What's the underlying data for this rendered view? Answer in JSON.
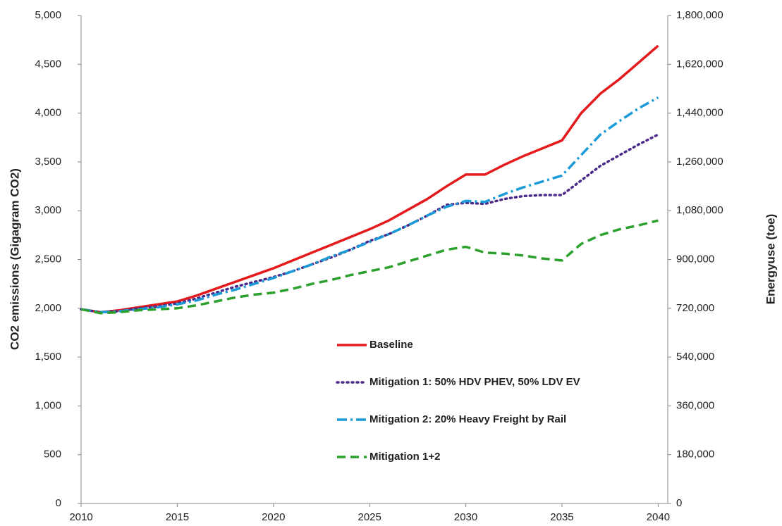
{
  "chart_data": {
    "type": "line",
    "ylabel": "CO2 emissions (Gigagram CO2)",
    "y2label": "Energyuse (toe)",
    "x": [
      2010,
      2011,
      2012,
      2013,
      2014,
      2015,
      2016,
      2017,
      2018,
      2019,
      2020,
      2021,
      2022,
      2023,
      2024,
      2025,
      2026,
      2027,
      2028,
      2029,
      2030,
      2031,
      2032,
      2033,
      2034,
      2035,
      2036,
      2037,
      2038,
      2039,
      2040
    ],
    "xlim": [
      2010,
      2040.5
    ],
    "xticks": [
      2010,
      2015,
      2020,
      2025,
      2030,
      2035,
      2040
    ],
    "ylim": [
      0,
      5000
    ],
    "yticks": [
      0,
      500,
      {
        "value": 1000,
        "label": "1,000"
      },
      {
        "value": 1500,
        "label": "1,500"
      },
      {
        "value": 2000,
        "label": "2,000"
      },
      {
        "value": 2500,
        "label": "2,500"
      },
      {
        "value": 3000,
        "label": "3,000"
      },
      {
        "value": 3500,
        "label": "3,500"
      },
      {
        "value": 4000,
        "label": "4,000"
      },
      {
        "value": 4500,
        "label": "4,500"
      },
      {
        "value": 5000,
        "label": "5,000"
      }
    ],
    "y2lim": [
      0,
      1800000
    ],
    "y2ticks": [
      0,
      {
        "value": 180000,
        "label": "180,000"
      },
      {
        "value": 360000,
        "label": "360,000"
      },
      {
        "value": 540000,
        "label": "540,000"
      },
      {
        "value": 720000,
        "label": "720,000"
      },
      {
        "value": 900000,
        "label": "900,000"
      },
      {
        "value": 1080000,
        "label": "1,080,000"
      },
      {
        "value": 1260000,
        "label": "1,260,000"
      },
      {
        "value": 1440000,
        "label": "1,440,000"
      },
      {
        "value": 1620000,
        "label": "1,620,000"
      },
      {
        "value": 1800000,
        "label": "1,800,000"
      }
    ],
    "legend": "center",
    "series": [
      {
        "name": "Baseline",
        "color": "#e41a1c",
        "style": "solid",
        "values": [
          1990,
          1960,
          1980,
          2010,
          2040,
          2070,
          2130,
          2200,
          2270,
          2340,
          2410,
          2490,
          2570,
          2650,
          2730,
          2810,
          2900,
          3010,
          3120,
          3250,
          3370,
          3370,
          3470,
          3560,
          3640,
          3720,
          4000,
          4200,
          4350,
          4520,
          4690
        ]
      },
      {
        "name": "Mitigation 1: 50% HDV PHEV, 50% LDV EV",
        "color": "#4b2a8a",
        "style": "dotted",
        "values": [
          1990,
          1960,
          1970,
          2000,
          2020,
          2050,
          2100,
          2160,
          2220,
          2270,
          2320,
          2380,
          2450,
          2520,
          2600,
          2690,
          2760,
          2850,
          2950,
          3060,
          3080,
          3070,
          3120,
          3150,
          3160,
          3160,
          3310,
          3460,
          3570,
          3680,
          3780
        ]
      },
      {
        "name": "Mitigation 2: 20% Heavy Freight by Rail",
        "color": "#1a9bd7",
        "style": "dashdot",
        "values": [
          1990,
          1960,
          1970,
          1990,
          2010,
          2040,
          2080,
          2140,
          2190,
          2250,
          2310,
          2380,
          2450,
          2530,
          2600,
          2680,
          2760,
          2850,
          2950,
          3040,
          3100,
          3090,
          3170,
          3240,
          3300,
          3360,
          3570,
          3780,
          3920,
          4050,
          4160
        ]
      },
      {
        "name": "Mitigation 1+2",
        "color": "#2ca02c",
        "style": "dashed",
        "values": [
          1990,
          1950,
          1960,
          1980,
          1990,
          2000,
          2030,
          2070,
          2110,
          2140,
          2160,
          2200,
          2250,
          2290,
          2340,
          2380,
          2420,
          2480,
          2540,
          2600,
          2630,
          2570,
          2560,
          2540,
          2510,
          2490,
          2660,
          2750,
          2810,
          2850,
          2900
        ]
      }
    ]
  }
}
